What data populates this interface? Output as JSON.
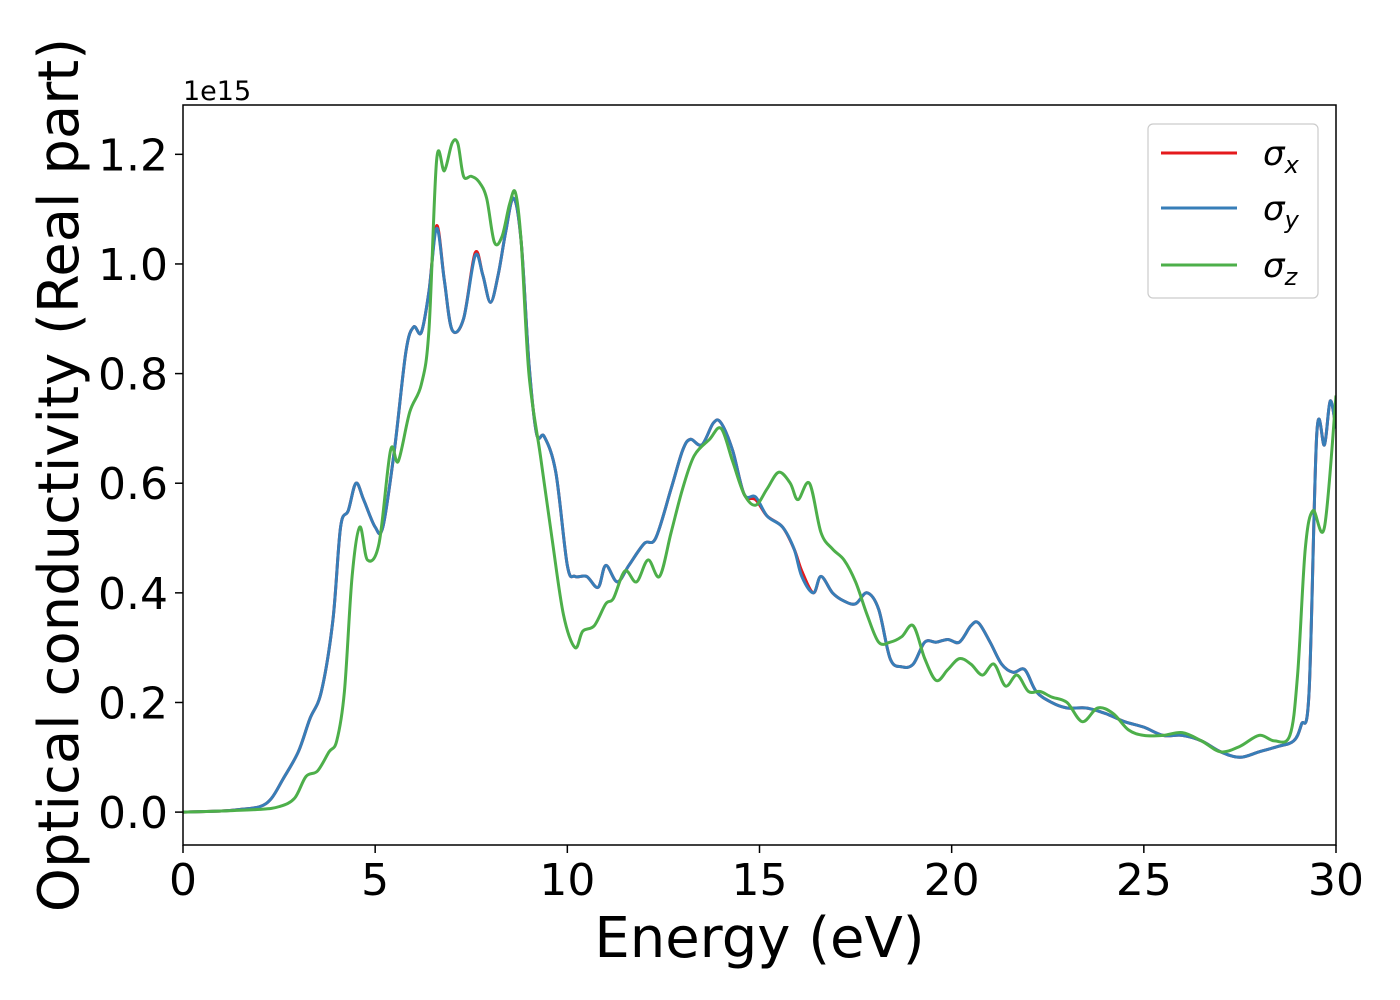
{
  "chart_data": {
    "type": "line",
    "xlabel": "Energy (eV)",
    "ylabel": "Optical conductivity (Real part)",
    "y_offset_label": "1e15",
    "xlim": [
      0,
      30
    ],
    "ylim": [
      -0.06,
      1.29
    ],
    "x_ticks": [
      0,
      5,
      10,
      15,
      20,
      25,
      30
    ],
    "x_tick_labels": [
      "0",
      "5",
      "10",
      "15",
      "20",
      "25",
      "30"
    ],
    "y_ticks": [
      0.0,
      0.2,
      0.4,
      0.6,
      0.8,
      1.0,
      1.2
    ],
    "y_tick_labels": [
      "0.0",
      "0.2",
      "0.4",
      "0.6",
      "0.8",
      "1.0",
      "1.2"
    ],
    "grid": false,
    "legend_position": "top-right",
    "series": [
      {
        "name": "σx",
        "symbol": "σ",
        "subscript": "x",
        "color": "#e41a1c",
        "x": [
          0,
          1,
          1.5,
          2,
          2.3,
          2.6,
          3.0,
          3.3,
          3.6,
          3.9,
          4.1,
          4.3,
          4.5,
          4.7,
          5.0,
          5.2,
          5.5,
          5.8,
          6.0,
          6.2,
          6.4,
          6.6,
          6.8,
          7.0,
          7.3,
          7.6,
          7.8,
          8.0,
          8.2,
          8.4,
          8.6,
          8.8,
          9.0,
          9.2,
          9.4,
          9.7,
          10.0,
          10.2,
          10.5,
          10.8,
          11.0,
          11.3,
          11.6,
          12.0,
          12.3,
          12.7,
          13.0,
          13.2,
          13.5,
          13.8,
          14.0,
          14.3,
          14.6,
          14.9,
          15.2,
          15.6,
          15.9,
          16.1,
          16.4,
          16.6,
          16.9,
          17.2,
          17.5,
          17.8,
          18.1,
          18.4,
          18.7,
          19.0,
          19.3,
          19.6,
          19.9,
          20.2,
          20.5,
          20.7,
          21.0,
          21.3,
          21.6,
          21.9,
          22.2,
          22.6,
          23.0,
          23.5,
          24.0,
          24.5,
          25.0,
          25.5,
          26.0,
          26.5,
          27.0,
          27.5,
          28.0,
          28.5,
          28.9,
          29.1,
          29.3,
          29.5,
          29.7,
          29.85,
          30.0
        ],
        "y": [
          0,
          0.002,
          0.005,
          0.01,
          0.025,
          0.06,
          0.11,
          0.17,
          0.22,
          0.35,
          0.52,
          0.55,
          0.6,
          0.57,
          0.52,
          0.52,
          0.66,
          0.84,
          0.885,
          0.875,
          0.95,
          1.07,
          0.97,
          0.88,
          0.9,
          1.02,
          0.98,
          0.93,
          0.98,
          1.06,
          1.12,
          1.04,
          0.82,
          0.69,
          0.685,
          0.62,
          0.45,
          0.43,
          0.43,
          0.41,
          0.45,
          0.42,
          0.45,
          0.49,
          0.5,
          0.59,
          0.66,
          0.68,
          0.67,
          0.71,
          0.71,
          0.66,
          0.58,
          0.57,
          0.54,
          0.52,
          0.48,
          0.44,
          0.4,
          0.43,
          0.4,
          0.385,
          0.38,
          0.4,
          0.37,
          0.28,
          0.265,
          0.27,
          0.31,
          0.31,
          0.315,
          0.31,
          0.34,
          0.345,
          0.31,
          0.27,
          0.255,
          0.26,
          0.22,
          0.2,
          0.19,
          0.19,
          0.18,
          0.165,
          0.155,
          0.14,
          0.14,
          0.13,
          0.11,
          0.1,
          0.11,
          0.12,
          0.13,
          0.16,
          0.22,
          0.69,
          0.67,
          0.75,
          0.7
        ]
      },
      {
        "name": "σy",
        "symbol": "σ",
        "subscript": "y",
        "color": "#377eb8",
        "x": [
          0,
          1,
          1.5,
          2,
          2.3,
          2.6,
          3.0,
          3.3,
          3.6,
          3.9,
          4.1,
          4.3,
          4.5,
          4.7,
          5.0,
          5.2,
          5.5,
          5.8,
          6.0,
          6.2,
          6.4,
          6.6,
          6.8,
          7.0,
          7.3,
          7.6,
          7.8,
          8.0,
          8.2,
          8.4,
          8.6,
          8.8,
          9.0,
          9.2,
          9.4,
          9.7,
          10.0,
          10.2,
          10.5,
          10.8,
          11.0,
          11.3,
          11.6,
          12.0,
          12.3,
          12.7,
          13.0,
          13.2,
          13.5,
          13.8,
          14.0,
          14.3,
          14.6,
          14.9,
          15.2,
          15.6,
          15.9,
          16.1,
          16.4,
          16.6,
          16.9,
          17.2,
          17.5,
          17.8,
          18.1,
          18.4,
          18.7,
          19.0,
          19.3,
          19.6,
          19.9,
          20.2,
          20.5,
          20.7,
          21.0,
          21.3,
          21.6,
          21.9,
          22.2,
          22.6,
          23.0,
          23.5,
          24.0,
          24.5,
          25.0,
          25.5,
          26.0,
          26.5,
          27.0,
          27.5,
          28.0,
          28.5,
          28.9,
          29.1,
          29.3,
          29.5,
          29.7,
          29.85,
          30.0
        ],
        "y": [
          0,
          0.002,
          0.005,
          0.01,
          0.025,
          0.06,
          0.11,
          0.17,
          0.22,
          0.35,
          0.52,
          0.55,
          0.6,
          0.57,
          0.52,
          0.52,
          0.66,
          0.84,
          0.885,
          0.875,
          0.95,
          1.065,
          0.97,
          0.88,
          0.9,
          1.015,
          0.98,
          0.93,
          0.98,
          1.06,
          1.12,
          1.04,
          0.82,
          0.69,
          0.685,
          0.62,
          0.45,
          0.43,
          0.43,
          0.41,
          0.45,
          0.42,
          0.45,
          0.49,
          0.5,
          0.59,
          0.66,
          0.68,
          0.67,
          0.71,
          0.71,
          0.66,
          0.58,
          0.575,
          0.54,
          0.52,
          0.48,
          0.43,
          0.4,
          0.43,
          0.4,
          0.385,
          0.38,
          0.4,
          0.37,
          0.28,
          0.265,
          0.27,
          0.31,
          0.31,
          0.315,
          0.31,
          0.34,
          0.345,
          0.31,
          0.27,
          0.255,
          0.26,
          0.22,
          0.2,
          0.19,
          0.19,
          0.18,
          0.165,
          0.155,
          0.14,
          0.14,
          0.13,
          0.11,
          0.1,
          0.11,
          0.12,
          0.13,
          0.16,
          0.22,
          0.69,
          0.67,
          0.75,
          0.7
        ]
      },
      {
        "name": "σz",
        "symbol": "σ",
        "subscript": "z",
        "color": "#4daf4a",
        "x": [
          0,
          1,
          2,
          2.5,
          2.9,
          3.2,
          3.5,
          3.8,
          4.0,
          4.2,
          4.4,
          4.6,
          4.8,
          5.1,
          5.4,
          5.6,
          5.9,
          6.2,
          6.4,
          6.6,
          6.8,
          7.0,
          7.15,
          7.3,
          7.5,
          7.7,
          7.9,
          8.1,
          8.3,
          8.5,
          8.65,
          8.8,
          9.0,
          9.3,
          9.6,
          9.9,
          10.2,
          10.4,
          10.7,
          11.0,
          11.2,
          11.5,
          11.8,
          12.1,
          12.4,
          12.7,
          13.0,
          13.3,
          13.7,
          14.0,
          14.3,
          14.6,
          14.9,
          15.2,
          15.5,
          15.8,
          16.0,
          16.3,
          16.6,
          16.9,
          17.2,
          17.5,
          17.8,
          18.1,
          18.4,
          18.7,
          19.0,
          19.3,
          19.6,
          19.9,
          20.2,
          20.5,
          20.8,
          21.1,
          21.4,
          21.7,
          22.0,
          22.3,
          22.6,
          23.0,
          23.4,
          23.8,
          24.2,
          24.6,
          25.0,
          25.5,
          26.0,
          26.5,
          27.0,
          27.5,
          28.0,
          28.4,
          28.8,
          29.0,
          29.2,
          29.4,
          29.7,
          30.0
        ],
        "y": [
          0,
          0.002,
          0.005,
          0.01,
          0.025,
          0.065,
          0.075,
          0.11,
          0.13,
          0.22,
          0.43,
          0.52,
          0.46,
          0.49,
          0.66,
          0.64,
          0.73,
          0.78,
          0.88,
          1.19,
          1.17,
          1.22,
          1.22,
          1.16,
          1.16,
          1.15,
          1.12,
          1.04,
          1.05,
          1.11,
          1.13,
          1.04,
          0.8,
          0.65,
          0.5,
          0.36,
          0.3,
          0.33,
          0.34,
          0.38,
          0.39,
          0.44,
          0.42,
          0.46,
          0.43,
          0.51,
          0.59,
          0.65,
          0.68,
          0.7,
          0.64,
          0.58,
          0.56,
          0.59,
          0.62,
          0.6,
          0.57,
          0.6,
          0.51,
          0.48,
          0.46,
          0.42,
          0.36,
          0.31,
          0.31,
          0.32,
          0.34,
          0.28,
          0.24,
          0.26,
          0.28,
          0.27,
          0.25,
          0.27,
          0.23,
          0.25,
          0.22,
          0.22,
          0.21,
          0.2,
          0.165,
          0.19,
          0.18,
          0.15,
          0.14,
          0.14,
          0.145,
          0.13,
          0.11,
          0.12,
          0.14,
          0.13,
          0.14,
          0.25,
          0.48,
          0.55,
          0.52,
          0.76
        ]
      }
    ]
  }
}
